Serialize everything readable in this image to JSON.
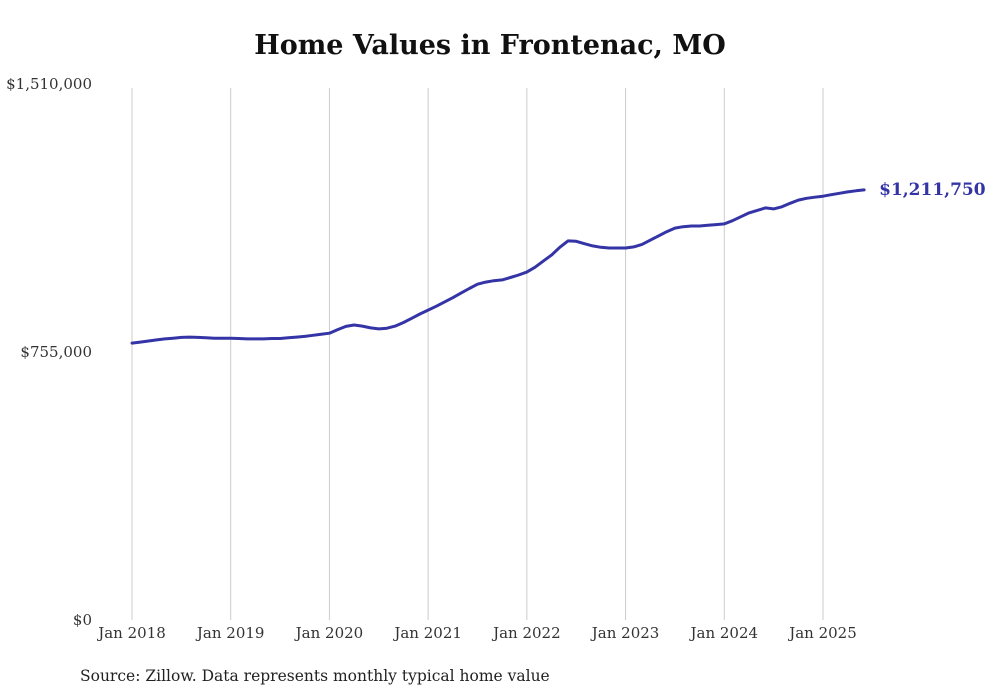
{
  "title": "Home Values in Frontenac, MO",
  "source_note": "Source: Zillow. Data represents monthly typical home value",
  "end_value_label": "$1,211,750",
  "colors": {
    "line": "#3434a6",
    "grid": "#cccccc",
    "end_label": "#3434a6",
    "title": "#111111",
    "axis_text": "#333333"
  },
  "y_axis": {
    "labels": [
      {
        "text": "$1,510,000",
        "value": 1510000
      },
      {
        "text": "$755,000",
        "value": 755000
      },
      {
        "text": "$0",
        "value": 0
      }
    ]
  },
  "chart_data": {
    "type": "line",
    "title": "Home Values in Frontenac, MO",
    "xlabel": "",
    "ylabel": "",
    "ylim": [
      0,
      1510000
    ],
    "grid": "vertical-only",
    "legend": "none",
    "start_month": "2018-01",
    "end_month": "2025-06",
    "x_tick_labels": [
      "Jan 2018",
      "Jan 2019",
      "Jan 2020",
      "Jan 2021",
      "Jan 2022",
      "Jan 2023",
      "Jan 2024",
      "Jan 2025"
    ],
    "series_name": "Typical home value (monthly)",
    "values": [
      780000,
      783000,
      786000,
      789000,
      792000,
      794000,
      796000,
      797000,
      796000,
      795000,
      794000,
      794000,
      794000,
      793000,
      792000,
      792000,
      792000,
      793000,
      793000,
      795000,
      797000,
      799000,
      802000,
      805000,
      808000,
      818000,
      827000,
      831000,
      828000,
      823000,
      820000,
      822000,
      828000,
      838000,
      850000,
      862000,
      873000,
      884000,
      896000,
      908000,
      921000,
      934000,
      946000,
      952000,
      956000,
      958000,
      965000,
      972000,
      980000,
      994000,
      1011000,
      1028000,
      1050000,
      1068000,
      1067000,
      1060000,
      1054000,
      1050000,
      1048000,
      1048000,
      1048000,
      1051000,
      1058000,
      1070000,
      1082000,
      1094000,
      1104000,
      1108000,
      1110000,
      1110000,
      1112000,
      1114000,
      1116000,
      1125000,
      1136000,
      1147000,
      1154000,
      1161000,
      1158000,
      1164000,
      1174000,
      1183000,
      1188000,
      1191000,
      1194000,
      1198000,
      1202000,
      1206000,
      1209000,
      1211750
    ],
    "final_value": 1211750
  }
}
